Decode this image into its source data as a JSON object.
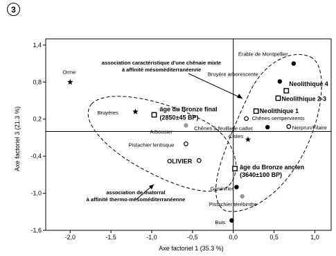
{
  "figure": {
    "label": "3"
  },
  "chart_data": {
    "type": "scatter",
    "xlabel": "Axe factoriel 1 (35.3 %)",
    "ylabel": "Axe factoriel 3 (21.3 %)",
    "xlim": [
      -2.3,
      1.2
    ],
    "ylim": [
      -1.6,
      1.5
    ],
    "xticks": [
      -2.0,
      -1.5,
      -1.0,
      -0.5,
      0.0,
      0.5,
      1.0
    ],
    "xtick_labels": [
      "-2,0",
      "-1,5",
      "-1,0",
      "-0,5",
      "0,0",
      "0,5",
      "1,0"
    ],
    "yticks": [
      1.4,
      0.8,
      0.2,
      -0.4,
      -1.0,
      -1.6
    ],
    "ytick_labels": [
      "1,4",
      "0,8",
      "0,2",
      "-0,4",
      "-1,0",
      "-1,6"
    ],
    "grid": false,
    "points": [
      {
        "label": "Orme",
        "x": -2.0,
        "y": 0.8,
        "marker": "star",
        "bold": false
      },
      {
        "label": "Bruyères",
        "x": -1.2,
        "y": 0.32,
        "marker": "star",
        "bold": false
      },
      {
        "label": "âge du Bronze final (2850±45 BP)",
        "x": -0.97,
        "y": 0.27,
        "marker": "square",
        "bold": true
      },
      {
        "label": "Arbousier",
        "x": -0.58,
        "y": 0.1,
        "marker": "gray",
        "bold": false
      },
      {
        "label": "Pistachier lentisque",
        "x": -0.58,
        "y": -0.2,
        "marker": "open",
        "bold": false
      },
      {
        "label": "OLIVIER",
        "x": -0.42,
        "y": -0.47,
        "marker": "open",
        "bold": true
      },
      {
        "label": "Erable de Montpellier",
        "x": 0.74,
        "y": 1.1,
        "marker": "filled",
        "bold": false
      },
      {
        "label": "Bruyère arborescente",
        "x": 0.57,
        "y": 0.81,
        "marker": "filled",
        "bold": false
      },
      {
        "label": "Neolithique 4",
        "x": 0.65,
        "y": 0.66,
        "marker": "square",
        "bold": true
      },
      {
        "label": "Neolithique 2-3",
        "x": 0.55,
        "y": 0.54,
        "marker": "square",
        "bold": true
      },
      {
        "label": "Neolithique 1",
        "x": 0.28,
        "y": 0.33,
        "marker": "square",
        "bold": true
      },
      {
        "label": "Chênes sempervirents",
        "x": 0.16,
        "y": 0.21,
        "marker": "open",
        "bold": false
      },
      {
        "label": "Chênes à feuillage caduc",
        "x": 0.42,
        "y": 0.07,
        "marker": "filled",
        "bold": false
      },
      {
        "label": "Nerprun/Filaire",
        "x": 0.68,
        "y": 0.08,
        "marker": "open",
        "bold": false
      },
      {
        "label": "Cistes",
        "x": 0.18,
        "y": -0.13,
        "marker": "star",
        "bold": false
      },
      {
        "label": "âge du Bronze ancien (3640±100 BP)",
        "x": 0.02,
        "y": -0.6,
        "marker": "square",
        "bold": true
      },
      {
        "label": "Genévrier",
        "x": 0.04,
        "y": -0.9,
        "marker": "filled",
        "bold": false
      },
      {
        "label": "Pistachier térébinthe",
        "x": 0.11,
        "y": -1.05,
        "marker": "gray",
        "bold": false
      },
      {
        "label": "Buis",
        "x": -0.02,
        "y": -1.44,
        "marker": "filled",
        "bold": false
      }
    ],
    "annotations": [
      {
        "id": "chenaie",
        "text": [
          "association caractéristique d'une chênaie mixte",
          "à affinité mésoméditerranéenne"
        ]
      },
      {
        "id": "matorral",
        "text": [
          "association de matorral",
          "à affinité thermo-mésoméditerranéenne"
        ]
      }
    ],
    "colors": {
      "filled": "#000000",
      "gray": "#999999",
      "open": "#ffffff"
    }
  }
}
